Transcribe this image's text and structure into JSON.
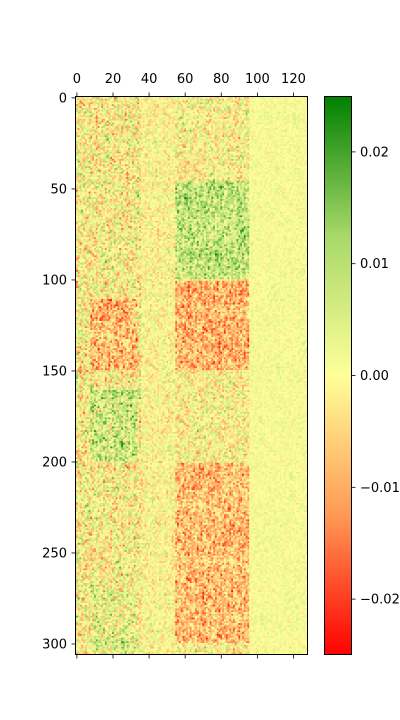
{
  "chart_data": {
    "type": "heatmap",
    "title": "",
    "xlabel": "",
    "ylabel": "",
    "x_axis_position": "top",
    "n_cols": 128,
    "n_rows": 306,
    "xlim": [
      -0.5,
      127.5
    ],
    "ylim": [
      305.5,
      -0.5
    ],
    "x_ticks": [
      0,
      20,
      40,
      60,
      80,
      100,
      120
    ],
    "x_tick_labels": [
      "0",
      "20",
      "40",
      "60",
      "80",
      "100",
      "120"
    ],
    "y_ticks": [
      0,
      50,
      100,
      150,
      200,
      250,
      300
    ],
    "y_tick_labels": [
      "0",
      "50",
      "100",
      "150",
      "200",
      "250",
      "300"
    ],
    "colormap": {
      "name": "red-yellow-green",
      "stops": [
        "#ff0000",
        "#ff9955",
        "#ffff99",
        "#a8d86a",
        "#008000"
      ]
    },
    "value_range": [
      -0.025,
      0.025
    ],
    "colorbar": {
      "position": "right",
      "ticks": [
        0.02,
        0.01,
        0.0,
        -0.01,
        -0.02
      ],
      "tick_labels": [
        "0.02",
        "0.01",
        "0.00",
        "−0.01",
        "−0.02"
      ]
    },
    "grid": false,
    "legend": "none",
    "value_description": "Dense per-cell values (range about -0.025 to 0.025), individually unreadable. Vertical banding: columns ~5-35 are noisy with strong red/green, columns ~55-95 show red bands near rows 100-150 and 200-300 and green clusters near rows 50-100, columns beyond ~100 are close to 0 (pale yellow)."
  }
}
